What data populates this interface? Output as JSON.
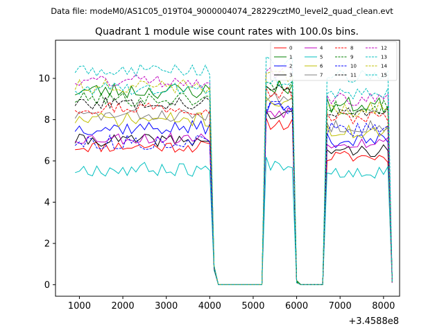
{
  "suptitle": "Data file: modeM0/AS1C05_019T04_9000004074_28229cztM0_level2_quad_clean.evt",
  "chart_data": {
    "type": "line",
    "title": "Quadrant 1 module wise count rates with 100.0s bins.",
    "xlabel": "",
    "ylabel": "",
    "x_offset_label": "+3.4588e8",
    "xlim": [
      450,
      8370
    ],
    "ylim": [
      -0.56,
      11.85
    ],
    "x_ticks": [
      1000,
      2000,
      3000,
      4000,
      5000,
      6000,
      7000,
      8000
    ],
    "x_tick_labels": [
      "1000",
      "2000",
      "3000",
      "4000",
      "5000",
      "6000",
      "7000",
      "8000"
    ],
    "y_ticks": [
      0,
      2,
      4,
      6,
      8,
      10
    ],
    "y_tick_labels": [
      "0",
      "2",
      "4",
      "6",
      "8",
      "10"
    ],
    "legend_position": "top-right",
    "segments": [
      {
        "start": 900,
        "count": 32
      },
      {
        "start": 4100,
        "count": 1
      },
      {
        "start": 4200,
        "count": 10
      },
      {
        "start": 5200,
        "count": 1
      },
      {
        "start": 5300,
        "count": 7
      },
      {
        "start": 6000,
        "count": 1
      },
      {
        "start": 6100,
        "count": 5
      },
      {
        "start": 6600,
        "count": 1
      },
      {
        "start": 6700,
        "count": 15
      },
      {
        "start": 8200,
        "count": 1
      }
    ],
    "series": [
      {
        "name": "0",
        "color": "#ff0000",
        "dash": "solid",
        "seed": 11,
        "levels": [
          6.7,
          0.8,
          0,
          0,
          7.8,
          0.1,
          0,
          0,
          6.2,
          0.1
        ],
        "amp": 0.3
      },
      {
        "name": "1",
        "color": "#008000",
        "dash": "solid",
        "seed": 23,
        "levels": [
          9.4,
          0.9,
          0,
          0,
          9.6,
          0.2,
          0,
          0,
          8.7,
          0.15
        ],
        "amp": 0.4
      },
      {
        "name": "2",
        "color": "#0000ff",
        "dash": "solid",
        "seed": 37,
        "levels": [
          7.6,
          0.8,
          0,
          0,
          8.6,
          0.1,
          0,
          0,
          7.0,
          0.1
        ],
        "amp": 0.35
      },
      {
        "name": "3",
        "color": "#000000",
        "dash": "solid",
        "seed": 41,
        "levels": [
          7.0,
          0.8,
          0,
          0,
          8.2,
          0.1,
          0,
          0,
          6.5,
          0.1
        ],
        "amp": 0.3
      },
      {
        "name": "4",
        "color": "#bf00bf",
        "dash": "solid",
        "seed": 53,
        "levels": [
          7.1,
          0.8,
          0,
          0,
          8.4,
          0.1,
          0,
          0,
          6.9,
          0.1
        ],
        "amp": 0.3
      },
      {
        "name": "5",
        "color": "#00bfbf",
        "dash": "solid",
        "seed": 67,
        "levels": [
          5.6,
          0.7,
          0,
          0,
          5.9,
          0.1,
          0,
          0,
          5.5,
          0.1
        ],
        "amp": 0.35
      },
      {
        "name": "6",
        "color": "#bfbf00",
        "dash": "solid",
        "seed": 71,
        "levels": [
          8.0,
          0.8,
          0,
          0,
          8.9,
          0.1,
          0,
          0,
          7.4,
          0.1
        ],
        "amp": 0.35
      },
      {
        "name": "7",
        "color": "#808080",
        "dash": "solid",
        "seed": 83,
        "levels": [
          8.2,
          0.8,
          0,
          0,
          9.0,
          0.1,
          0,
          0,
          7.7,
          0.1
        ],
        "amp": 0.3
      },
      {
        "name": "8",
        "color": "#ff0000",
        "dash": "dashed",
        "seed": 97,
        "levels": [
          8.6,
          0.8,
          0,
          0,
          9.3,
          0.1,
          0,
          0,
          8.1,
          0.1
        ],
        "amp": 0.35
      },
      {
        "name": "9",
        "color": "#008000",
        "dash": "dashed",
        "seed": 101,
        "levels": [
          9.0,
          0.9,
          0,
          0,
          9.7,
          0.15,
          0,
          0,
          8.6,
          0.15
        ],
        "amp": 0.35
      },
      {
        "name": "10",
        "color": "#0000ff",
        "dash": "dashed",
        "seed": 113,
        "levels": [
          6.9,
          0.8,
          0,
          0,
          8.6,
          0.1,
          0,
          0,
          7.5,
          0.1
        ],
        "amp": 0.35
      },
      {
        "name": "11",
        "color": "#000000",
        "dash": "dashed",
        "seed": 127,
        "levels": [
          8.8,
          0.8,
          0,
          0,
          9.5,
          0.1,
          0,
          0,
          8.4,
          0.1
        ],
        "amp": 0.3
      },
      {
        "name": "12",
        "color": "#bf00bf",
        "dash": "dashed",
        "seed": 131,
        "levels": [
          9.9,
          0.9,
          0,
          0,
          10.3,
          0.1,
          0,
          0,
          9.0,
          0.1
        ],
        "amp": 0.35
      },
      {
        "name": "13",
        "color": "#00bfbf",
        "dash": "dashed",
        "seed": 149,
        "levels": [
          10.4,
          0.9,
          0,
          0,
          10.8,
          0.1,
          0,
          0,
          10.1,
          0.1
        ],
        "amp": 0.3
      },
      {
        "name": "14",
        "color": "#bfbf00",
        "dash": "dashed",
        "seed": 151,
        "levels": [
          9.6,
          0.9,
          0,
          0,
          10.0,
          0.1,
          0,
          0,
          8.5,
          0.1
        ],
        "amp": 0.35
      },
      {
        "name": "15",
        "color": "#00bfbf",
        "dash": "dashed",
        "seed": 163,
        "levels": [
          9.5,
          0.9,
          0,
          0,
          9.9,
          0.1,
          0,
          0,
          9.3,
          0.1
        ],
        "amp": 0.3
      }
    ]
  }
}
